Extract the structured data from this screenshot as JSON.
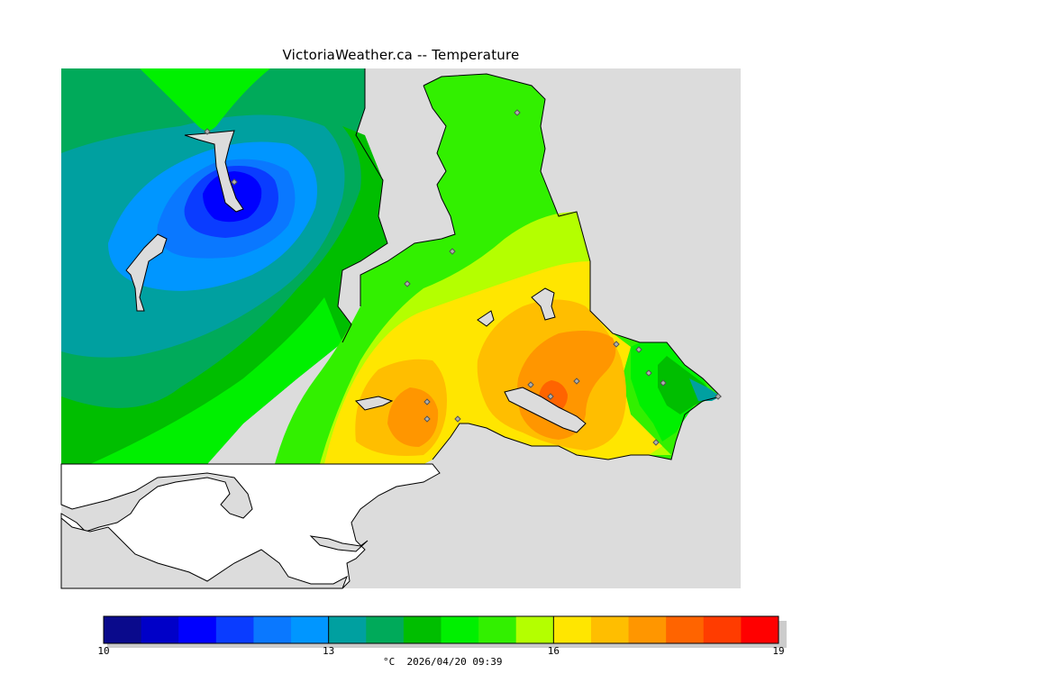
{
  "title": "VictoriaWeather.ca -- Temperature",
  "map": {
    "variable": "Temperature",
    "land_color_outside_data": "#ffffff",
    "water_color": "#dcdcdc",
    "station_marker": "diamond-icon"
  },
  "legend": {
    "unit": "°C",
    "timestamp": "2026/04/20 09:39",
    "min": 10,
    "max": 19,
    "tick_labels": [
      "10",
      "13",
      "16",
      "19"
    ],
    "tick_values": [
      10,
      13,
      16,
      19
    ],
    "bin_colors": [
      "#0a0a8c",
      "#0000c8",
      "#0000ff",
      "#0a3cff",
      "#0a78ff",
      "#0096ff",
      "#00a0a0",
      "#00aa5a",
      "#00be00",
      "#00f000",
      "#32f000",
      "#b4ff00",
      "#ffe600",
      "#ffbe00",
      "#ff9600",
      "#ff6400",
      "#ff3c00",
      "#ff0000"
    ]
  }
}
